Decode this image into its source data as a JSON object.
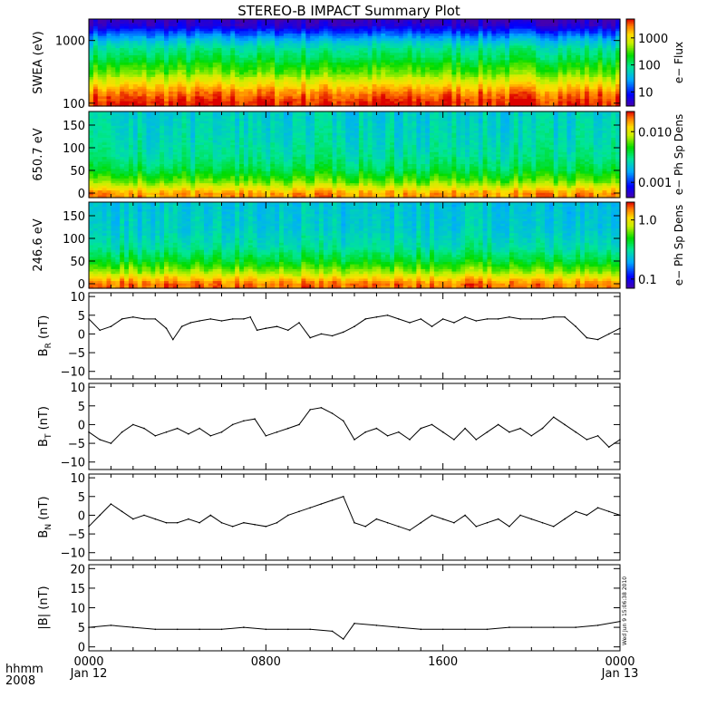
{
  "title": "STEREO-B IMPACT Summary Plot",
  "timestamp": "Wed Jun  9 15:06:38 2010",
  "time_axis": {
    "label_line1": "hhmm",
    "label_line2": "2008",
    "ticks": [
      {
        "t": 0,
        "line1": "0000",
        "line2": "Jan 12"
      },
      {
        "t": 8,
        "line1": "0800",
        "line2": ""
      },
      {
        "t": 16,
        "line1": "1600",
        "line2": ""
      },
      {
        "t": 24,
        "line1": "0000",
        "line2": "Jan 13"
      }
    ],
    "range_hours": [
      0,
      24
    ]
  },
  "chart_data": [
    {
      "type": "heatmap",
      "ylabel": "SWEA (eV)",
      "ylog": true,
      "ylim": [
        90,
        2200
      ],
      "yticks": [
        {
          "v": 100,
          "label": "100"
        },
        {
          "v": 1000,
          "label": "1000"
        }
      ],
      "colorbar": {
        "label": "e− Flux",
        "log": true,
        "range": [
          3,
          5000
        ],
        "ticks": [
          {
            "v": 10,
            "label": "10"
          },
          {
            "v": 100,
            "label": "100"
          },
          {
            "v": 1000,
            "label": "1000"
          }
        ]
      },
      "profile": {
        "axis_values": [
          100,
          150,
          200,
          300,
          500,
          800,
          1200,
          1700,
          2200
        ],
        "levels": [
          0.98,
          0.9,
          0.8,
          0.65,
          0.52,
          0.42,
          0.25,
          0.06,
          0.02
        ]
      }
    },
    {
      "type": "heatmap",
      "ylabel": "650.7 eV",
      "ylim": [
        -10,
        180
      ],
      "yticks": [
        {
          "v": 0,
          "label": "0"
        },
        {
          "v": 50,
          "label": "50"
        },
        {
          "v": 100,
          "label": "100"
        },
        {
          "v": 150,
          "label": "150"
        }
      ],
      "colorbar": {
        "label": "e− Ph Sp Dens",
        "log": true,
        "range": [
          0.0005,
          0.025
        ],
        "ticks": [
          {
            "v": 0.001,
            "label": "0.001"
          },
          {
            "v": 0.01,
            "label": "0.010"
          }
        ]
      },
      "profile": {
        "axis_values": [
          0,
          10,
          25,
          50,
          80,
          120,
          180
        ],
        "levels": [
          0.88,
          0.78,
          0.65,
          0.52,
          0.45,
          0.41,
          0.38
        ]
      }
    },
    {
      "type": "heatmap",
      "ylabel": "246.6 eV",
      "ylim": [
        -10,
        180
      ],
      "yticks": [
        {
          "v": 0,
          "label": "0"
        },
        {
          "v": 50,
          "label": "50"
        },
        {
          "v": 100,
          "label": "100"
        },
        {
          "v": 150,
          "label": "150"
        }
      ],
      "colorbar": {
        "label": "e− Ph Sp Dens",
        "log": true,
        "range": [
          0.07,
          2.0
        ],
        "ticks": [
          {
            "v": 0.1,
            "label": "0.1"
          },
          {
            "v": 1.0,
            "label": "1.0"
          }
        ]
      },
      "profile": {
        "axis_values": [
          0,
          10,
          25,
          50,
          80,
          120,
          180
        ],
        "levels": [
          0.92,
          0.84,
          0.7,
          0.55,
          0.44,
          0.38,
          0.36
        ]
      }
    },
    {
      "type": "line",
      "ylabel_main": "B",
      "ylabel_sub": "R",
      "ylabel_unit": " (nT)",
      "ylim": [
        -12,
        11
      ],
      "yticks": [
        {
          "v": -10,
          "label": "−10"
        },
        {
          "v": -5,
          "label": "−5"
        },
        {
          "v": 0,
          "label": "0"
        },
        {
          "v": 5,
          "label": "5"
        },
        {
          "v": 10,
          "label": "10"
        }
      ],
      "x": [
        0,
        0.5,
        1,
        1.5,
        2,
        2.5,
        3,
        3.5,
        3.8,
        4.2,
        4.6,
        5,
        5.5,
        6,
        6.5,
        7,
        7.3,
        7.6,
        8,
        8.5,
        9,
        9.5,
        10,
        10.5,
        11,
        11.5,
        12,
        12.5,
        13,
        13.5,
        14,
        14.5,
        15,
        15.5,
        16,
        16.5,
        17,
        17.5,
        18,
        18.5,
        19,
        19.5,
        20,
        20.5,
        21,
        21.5,
        22,
        22.5,
        23,
        23.5,
        24
      ],
      "y": [
        4,
        1,
        2,
        4,
        4.5,
        4,
        4,
        1.5,
        -1.5,
        2,
        3,
        3.5,
        4,
        3.5,
        4,
        4,
        4.5,
        1,
        1.5,
        2,
        1,
        3,
        -1,
        0,
        -0.5,
        0.5,
        2,
        4,
        4.5,
        5,
        4,
        3,
        4,
        2,
        4,
        3,
        4.5,
        3.5,
        4,
        4,
        4.5,
        4,
        4,
        4,
        4.5,
        4.5,
        2,
        -1,
        -1.5,
        0,
        1.5
      ]
    },
    {
      "type": "line",
      "ylabel_main": "B",
      "ylabel_sub": "T",
      "ylabel_unit": " (nT)",
      "ylim": [
        -12,
        11
      ],
      "yticks": [
        {
          "v": -10,
          "label": "−10"
        },
        {
          "v": -5,
          "label": "−5"
        },
        {
          "v": 0,
          "label": "0"
        },
        {
          "v": 5,
          "label": "5"
        },
        {
          "v": 10,
          "label": "10"
        }
      ],
      "x": [
        0,
        0.5,
        1,
        1.5,
        2,
        2.5,
        3,
        3.5,
        4,
        4.5,
        5,
        5.5,
        6,
        6.5,
        7,
        7.5,
        8,
        8.5,
        9,
        9.5,
        10,
        10.5,
        11,
        11.5,
        12,
        12.5,
        13,
        13.5,
        14,
        14.5,
        15,
        15.5,
        16,
        16.5,
        17,
        17.5,
        18,
        18.5,
        19,
        19.5,
        20,
        20.5,
        21,
        21.5,
        22,
        22.5,
        23,
        23.5,
        24
      ],
      "y": [
        -2,
        -4,
        -5,
        -2,
        0,
        -1,
        -3,
        -2,
        -1,
        -2.5,
        -1,
        -3,
        -2,
        0,
        1,
        1.5,
        -3,
        -2,
        -1,
        0,
        4,
        4.5,
        3,
        1,
        -4,
        -2,
        -1,
        -3,
        -2,
        -4,
        -1,
        0,
        -2,
        -4,
        -1,
        -4,
        -2,
        0,
        -2,
        -1,
        -3,
        -1,
        2,
        0,
        -2,
        -4,
        -3,
        -6,
        -4
      ]
    },
    {
      "type": "line",
      "ylabel_main": "B",
      "ylabel_sub": "N",
      "ylabel_unit": " (nT)",
      "ylim": [
        -12,
        11
      ],
      "yticks": [
        {
          "v": -10,
          "label": "−10"
        },
        {
          "v": -5,
          "label": "−5"
        },
        {
          "v": 0,
          "label": "0"
        },
        {
          "v": 5,
          "label": "5"
        },
        {
          "v": 10,
          "label": "10"
        }
      ],
      "x": [
        0,
        0.5,
        1,
        1.5,
        2,
        2.5,
        3,
        3.5,
        4,
        4.5,
        5,
        5.5,
        6,
        6.5,
        7,
        7.5,
        8,
        8.5,
        9,
        9.5,
        10,
        10.5,
        11,
        11.5,
        12,
        12.5,
        13,
        13.5,
        14,
        14.5,
        15,
        15.5,
        16,
        16.5,
        17,
        17.5,
        18,
        18.5,
        19,
        19.5,
        20,
        20.5,
        21,
        21.5,
        22,
        22.5,
        23,
        23.5,
        24
      ],
      "y": [
        -3,
        0,
        3,
        1,
        -1,
        0,
        -1,
        -2,
        -2,
        -1,
        -2,
        0,
        -2,
        -3,
        -2,
        -2.5,
        -3,
        -2,
        0,
        1,
        2,
        3,
        4,
        5,
        -2,
        -3,
        -1,
        -2,
        -3,
        -4,
        -2,
        0,
        -1,
        -2,
        0,
        -3,
        -2,
        -1,
        -3,
        0,
        -1,
        -2,
        -3,
        -1,
        1,
        0,
        2,
        1,
        0
      ]
    },
    {
      "type": "line",
      "ylabel_main": "|B|",
      "ylabel_sub": "",
      "ylabel_unit": " (nT)",
      "ylim": [
        -1,
        21
      ],
      "yticks": [
        {
          "v": 0,
          "label": "0"
        },
        {
          "v": 5,
          "label": "5"
        },
        {
          "v": 10,
          "label": "10"
        },
        {
          "v": 15,
          "label": "15"
        },
        {
          "v": 20,
          "label": "20"
        }
      ],
      "x": [
        0,
        1,
        2,
        3,
        4,
        5,
        6,
        7,
        8,
        9,
        10,
        11,
        11.5,
        12,
        13,
        14,
        15,
        16,
        17,
        18,
        19,
        20,
        21,
        22,
        23,
        24
      ],
      "y": [
        5,
        5.5,
        5,
        4.5,
        4.5,
        4.5,
        4.5,
        5,
        4.5,
        4.5,
        4.5,
        4,
        2,
        6,
        5.5,
        5,
        4.5,
        4.5,
        4.5,
        4.5,
        5,
        5,
        5,
        5,
        5.5,
        6.5
      ]
    }
  ]
}
